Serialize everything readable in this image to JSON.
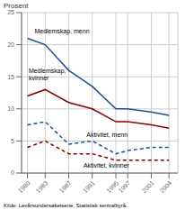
{
  "chart_data": {
    "type": "line",
    "x": [
      1980,
      1983,
      1987,
      1991,
      1995,
      1997,
      2001,
      2004
    ],
    "series": [
      {
        "color": "#1a5096",
        "line_style": "solid",
        "values": [
          21,
          20,
          16,
          13.5,
          10,
          10,
          9.5,
          9
        ]
      },
      {
        "color": "#8b0000",
        "line_style": "solid",
        "values": [
          12,
          13,
          11,
          10,
          8,
          8,
          7.5,
          7
        ]
      },
      {
        "color": "#1a5096",
        "line_style": "dashed",
        "values": [
          7.5,
          8,
          4.5,
          5,
          3,
          3.5,
          4,
          4
        ]
      },
      {
        "color": "#8b0000",
        "line_style": "dashed",
        "values": [
          4,
          5,
          3,
          3,
          2,
          2,
          2,
          2
        ]
      }
    ],
    "annotations": [
      {
        "text": "Medlemskap, menn",
        "x": 1981.2,
        "y": 21.8
      },
      {
        "text": "Medlemskap,\nkvinner",
        "x": 1980.2,
        "y": 14.5
      },
      {
        "text": "Aktivitet, menn",
        "x": 1990.0,
        "y": 5.6
      },
      {
        "text": "Aktivitet, kvinner",
        "x": 1989.5,
        "y": 0.8
      }
    ],
    "ylabel": "Prosent",
    "source": "Kilde: Levårsundersøkelsene, Statistisk sentralbyrå.",
    "xlim": [
      1979,
      2005.5
    ],
    "xticks": [
      1980,
      1983,
      1987,
      1991,
      1995,
      1997,
      2001,
      2004
    ],
    "ylim": [
      0,
      25
    ],
    "yticks": [
      0,
      5,
      10,
      15,
      20,
      25
    ],
    "grid": true
  }
}
